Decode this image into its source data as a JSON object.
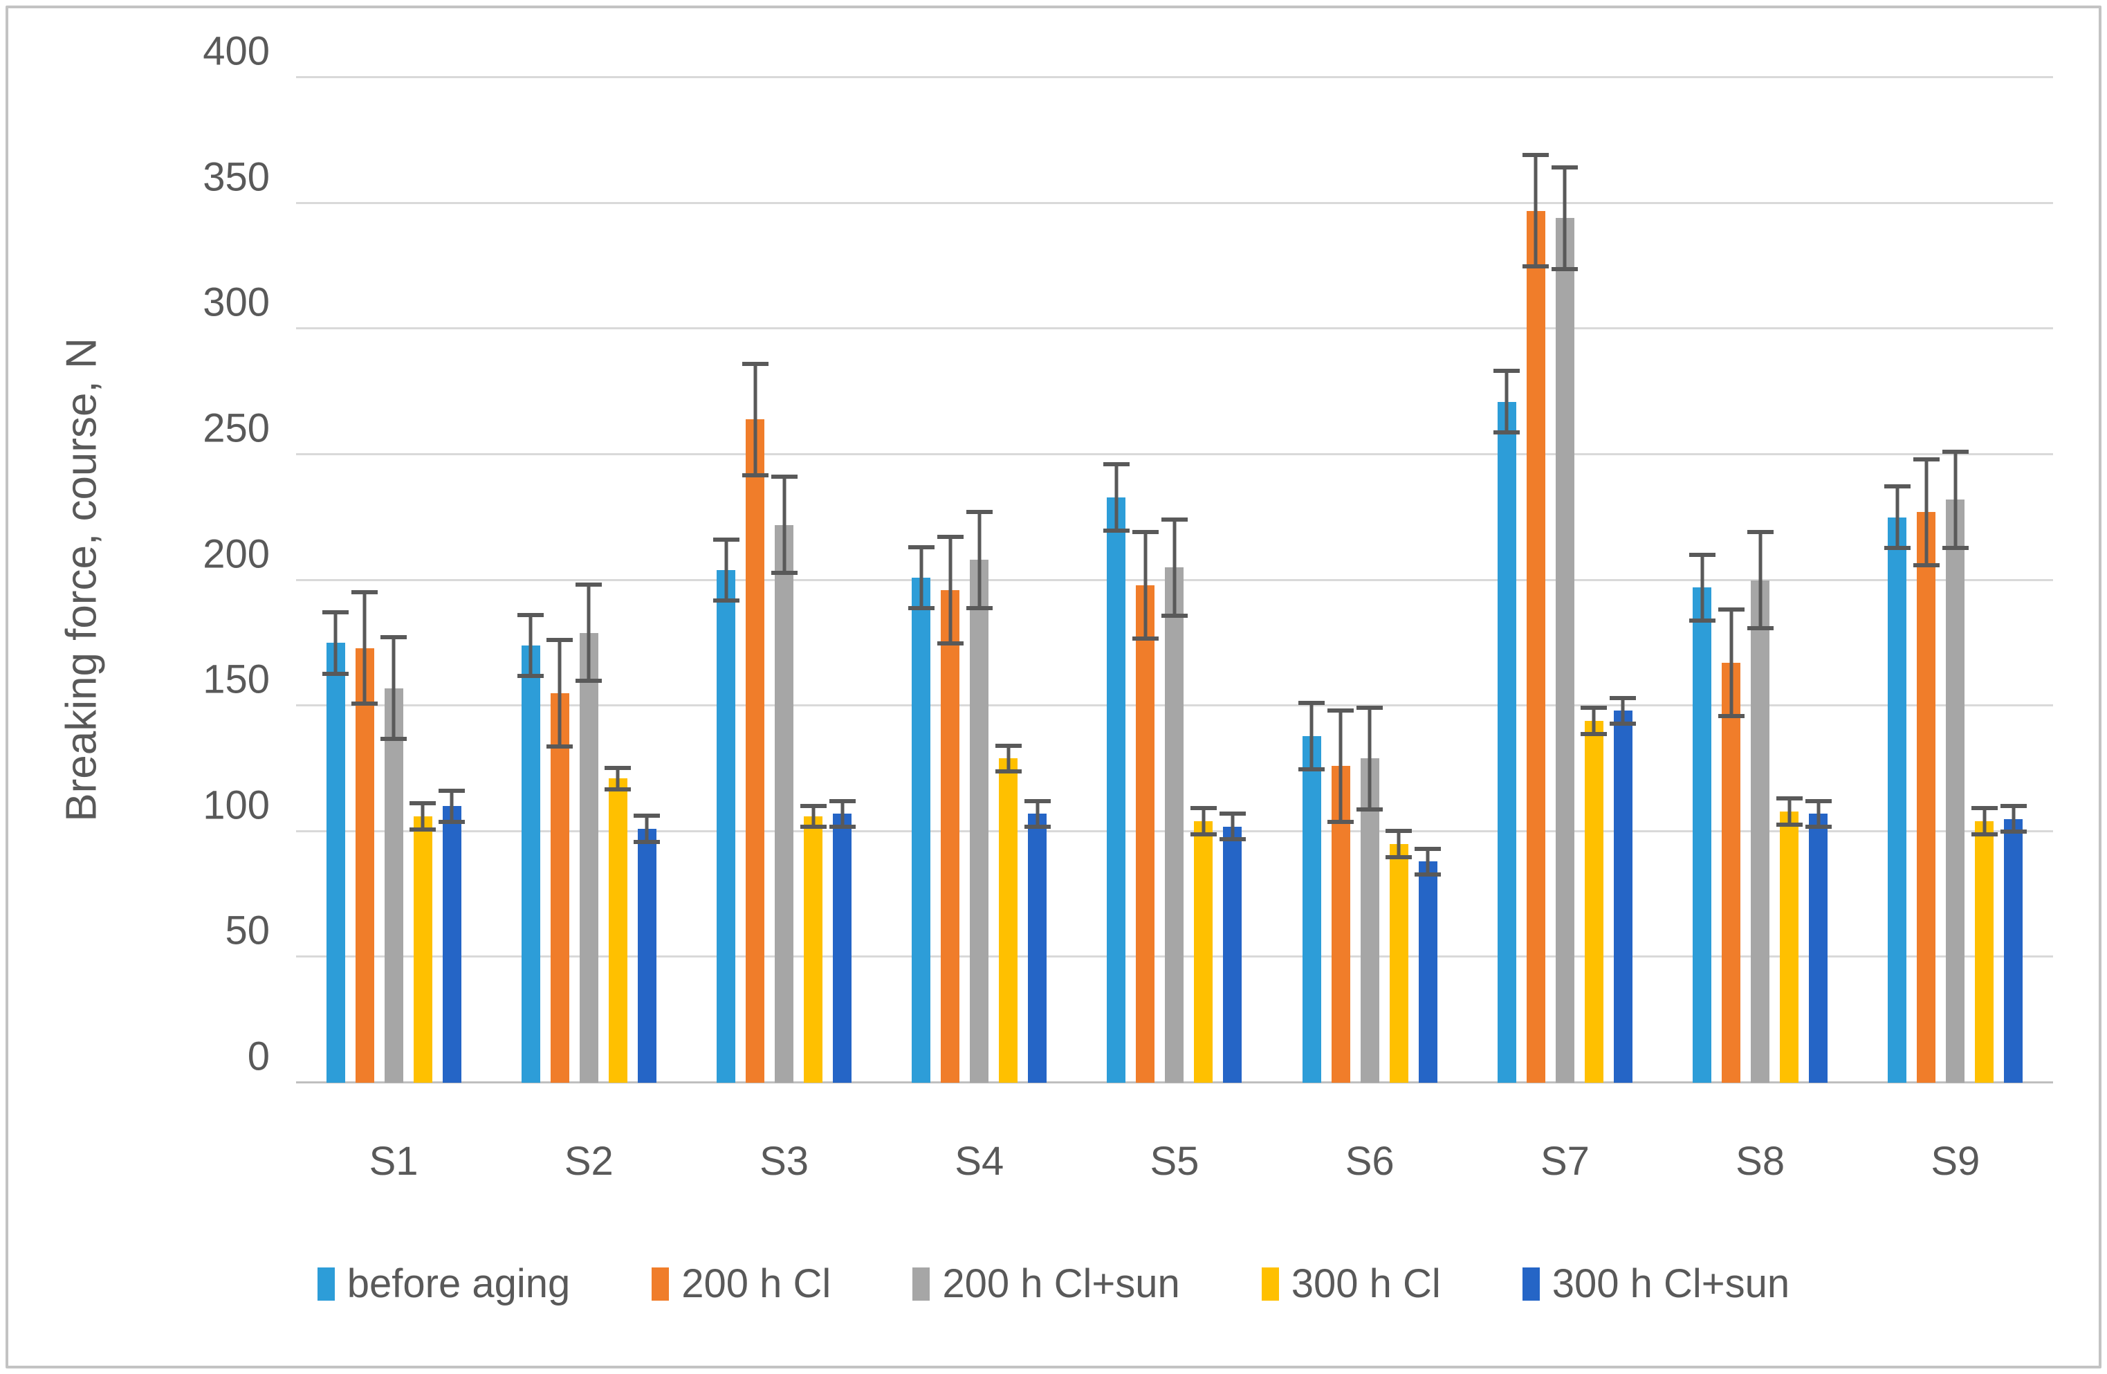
{
  "figure": {
    "background": "#ffffff",
    "border_color": "#c3c3c3",
    "gridline_color": "#d9d9d9",
    "baseline_color": "#bfbfbf",
    "error_bar_color": "#595959",
    "text_color": "#595959"
  },
  "chart_data": {
    "type": "bar",
    "title": "",
    "xlabel": "",
    "ylabel": "Breaking force, course, N",
    "ylim": [
      0,
      400
    ],
    "ytick_step": 50,
    "yticks": [
      0,
      50,
      100,
      150,
      200,
      250,
      300,
      350,
      400
    ],
    "grid": "horizontal",
    "legend_position": "bottom",
    "error_bars": true,
    "categories": [
      "S1",
      "S2",
      "S3",
      "S4",
      "S5",
      "S6",
      "S7",
      "S8",
      "S9"
    ],
    "series": [
      {
        "name": "before aging",
        "color": "#2d9dd8",
        "values": [
          175,
          174,
          204,
          201,
          233,
          138,
          271,
          197,
          225
        ],
        "errors": [
          13,
          13,
          13,
          13,
          14,
          14,
          13,
          14,
          13
        ]
      },
      {
        "name": "200 h Cl",
        "color": "#f07d2a",
        "values": [
          173,
          155,
          264,
          196,
          198,
          126,
          347,
          167,
          227
        ],
        "errors": [
          23,
          22,
          23,
          22,
          22,
          23,
          23,
          22,
          22
        ]
      },
      {
        "name": "200 h Cl+sun",
        "color": "#a6a6a6",
        "values": [
          157,
          179,
          222,
          208,
          205,
          129,
          344,
          200,
          232
        ],
        "errors": [
          21,
          20,
          20,
          20,
          20,
          21,
          21,
          20,
          20
        ]
      },
      {
        "name": "300 h Cl",
        "color": "#ffc000",
        "values": [
          106,
          121,
          106,
          129,
          104,
          95,
          144,
          108,
          104
        ],
        "errors": [
          6,
          5,
          5,
          6,
          6,
          6,
          6,
          6,
          6
        ]
      },
      {
        "name": "300 h Cl+sun",
        "color": "#2565c6",
        "values": [
          110,
          101,
          107,
          107,
          102,
          88,
          148,
          107,
          105
        ],
        "errors": [
          7,
          6,
          6,
          6,
          6,
          6,
          6,
          6,
          6
        ]
      }
    ]
  }
}
